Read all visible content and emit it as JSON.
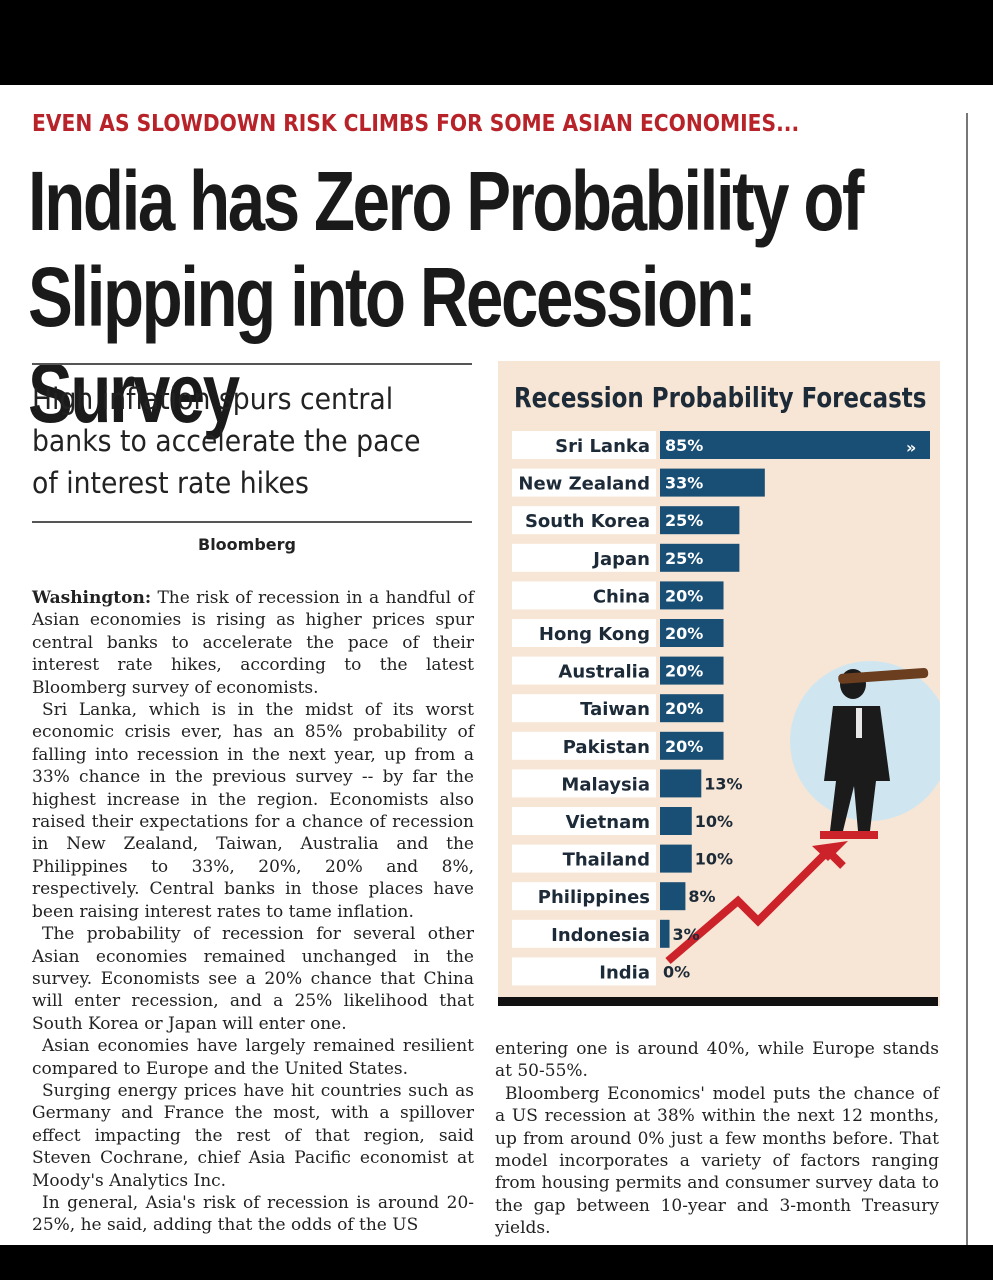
{
  "kicker": "EVEN AS SLOWDOWN RISK CLIMBS FOR SOME ASIAN ECONOMIES...",
  "headline": "India has Zero Probability of Slipping into Recession: Survey",
  "deck": "High inflation spurs central banks to accelerate the pace of interest rate hikes",
  "byline": "Bloomberg",
  "body": {
    "dateline": "Washington:",
    "paragraphs": [
      "The risk of recession in a handful of Asian economies is rising as higher prices spur central banks to accelerate the pace of their interest rate hikes, according to the latest Bloomberg survey of economists.",
      "Sri Lanka, which is in the midst of its worst economic crisis ever, has an 85% probability of falling into recession in the next year, up from a 33% chance in the previous survey -- by far the highest increase in the region. Economists also raised their expectations for a chance of recession in New Zealand, Taiwan, Australia and the Philippines to 33%, 20%, 20% and 8%, respectively. Central banks in those places have been raising interest rates to tame inflation.",
      "The probability of recession for several other Asian economies remained unchanged in the survey. Economists see a 20% chance that China will enter recession, and a 25% likelihood that South Korea or Japan will enter one.",
      "Asian economies have largely remained resilient compared to Europe and the United States.",
      "Surging energy prices have hit countries such as Germany and France the most, with a spillover effect impacting the rest of that region, said Steven Cochrane, chief Asia Pacific economist at Moody's Analytics Inc.",
      "In general, Asia's risk of recession is around 20-25%, he said, adding that the odds of the US"
    ],
    "right_paragraphs": [
      "entering one is around 40%, while Europe stands at 50-55%.",
      "Bloomberg Economics' model puts the chance of a US recession at 38% within the next 12 months, up from around 0% just a few months before. That model incorporates a variety of factors ranging from housing permits and consumer survey data to the gap between 10-year and 3-month Treasury yields."
    ]
  },
  "chart_data": {
    "type": "bar",
    "title": "Recession Probability Forecasts",
    "categories": [
      "Sri Lanka",
      "New Zealand",
      "South Korea",
      "Japan",
      "China",
      "Hong Kong",
      "Australia",
      "Taiwan",
      "Pakistan",
      "Malaysia",
      "Vietnam",
      "Thailand",
      "Philippines",
      "Indonesia",
      "India"
    ],
    "values": [
      85,
      33,
      25,
      25,
      20,
      20,
      20,
      20,
      20,
      13,
      10,
      10,
      8,
      3,
      0
    ],
    "labels": [
      "85%",
      "33%",
      "25%",
      "25%",
      "20%",
      "20%",
      "20%",
      "20%",
      "20%",
      "13%",
      "10%",
      "10%",
      "8%",
      "3%",
      "0%"
    ],
    "bar_color": "#1a4f75",
    "truncated_marker": "»",
    "orientation": "horizontal",
    "grid": false
  },
  "colors": {
    "kicker": "#b8232a",
    "chart_bg": "#f7e6d5",
    "bar": "#1a4f75",
    "arrow": "#cc2229"
  }
}
